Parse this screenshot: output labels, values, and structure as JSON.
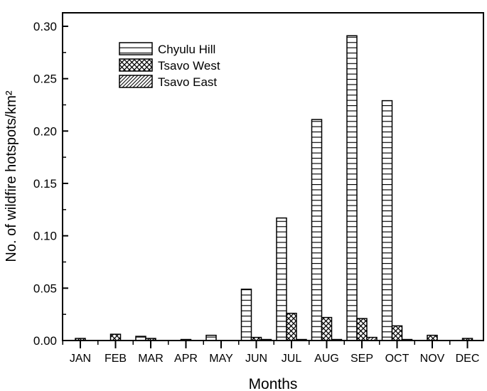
{
  "chart_data": {
    "type": "bar",
    "xlabel": "Months",
    "ylabel": "No. of wildfire hotspots/km²",
    "ylim": [
      0,
      0.3
    ],
    "yticks": [
      "0.00",
      "0.05",
      "0.10",
      "0.15",
      "0.20",
      "0.25",
      "0.30"
    ],
    "categories": [
      "JAN",
      "FEB",
      "MAR",
      "APR",
      "MAY",
      "JUN",
      "JUL",
      "AUG",
      "SEP",
      "OCT",
      "NOV",
      "DEC"
    ],
    "legend_position": "top-left",
    "series": [
      {
        "name": "Chyulu Hill",
        "pattern": "horizontal-lines",
        "values": [
          0,
          0,
          0.004,
          0,
          0.005,
          0.049,
          0.117,
          0.211,
          0.291,
          0.229,
          0,
          0
        ]
      },
      {
        "name": "Tsavo West",
        "pattern": "crosshatch",
        "values": [
          0.002,
          0.006,
          0.002,
          0.001,
          0,
          0.003,
          0.026,
          0.022,
          0.021,
          0.014,
          0.005,
          0.002
        ]
      },
      {
        "name": "Tsavo East",
        "pattern": "diagonal-lines",
        "values": [
          0,
          0,
          0,
          0,
          0,
          0.001,
          0.001,
          0.001,
          0.003,
          0.001,
          0,
          0
        ]
      }
    ]
  }
}
